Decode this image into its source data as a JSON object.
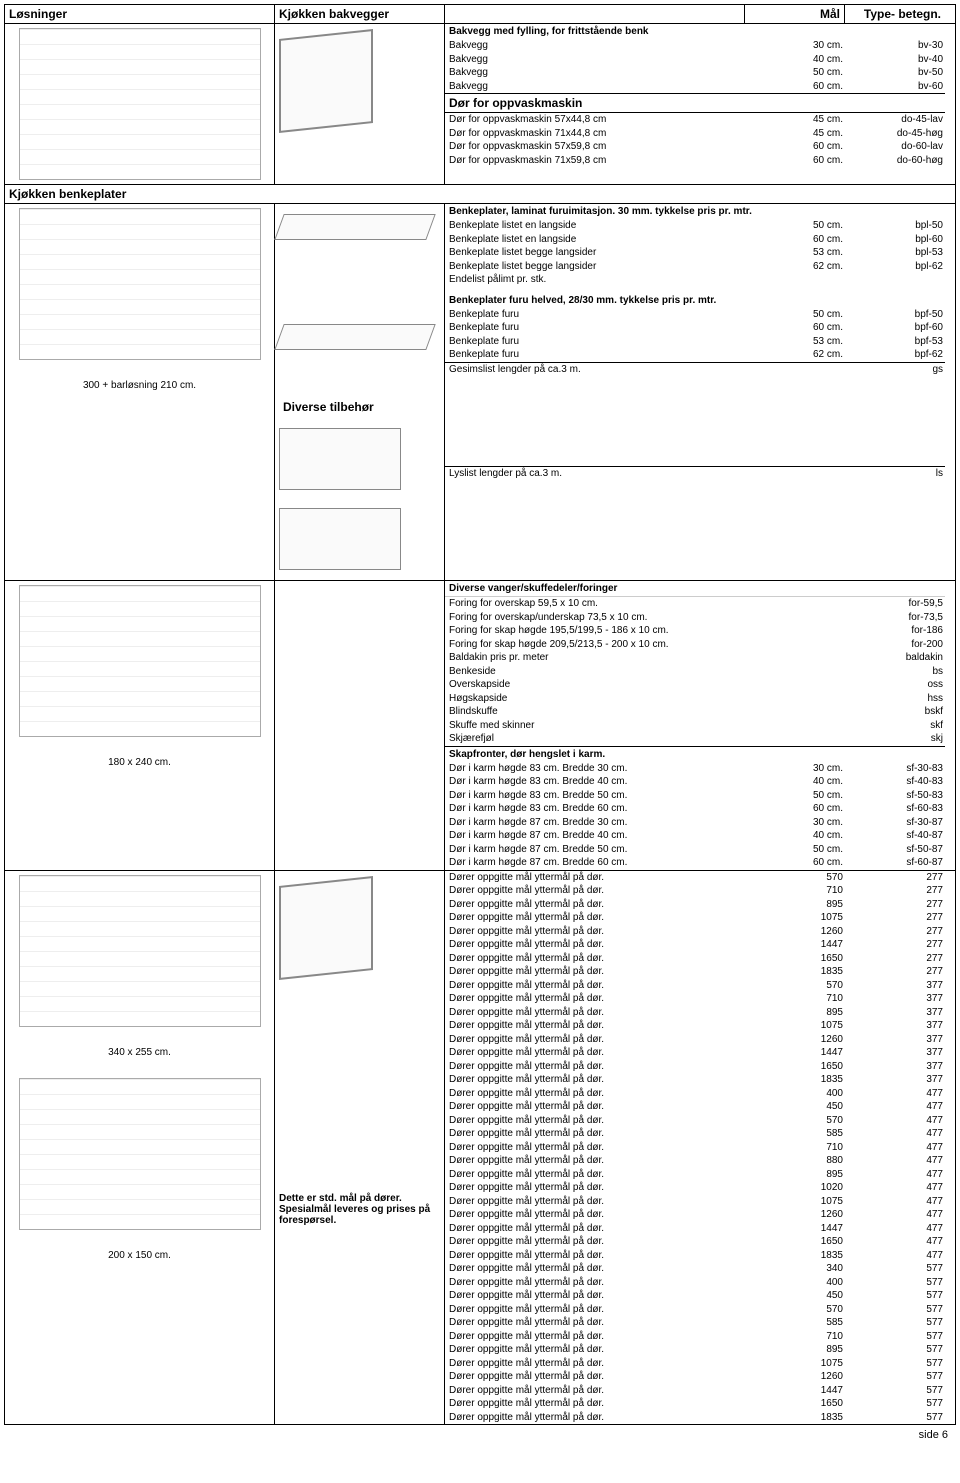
{
  "header": {
    "losninger": "Løsninger",
    "kjokken_bakvegger": "Kjøkken bakvegger",
    "mal": "Mål",
    "typebetegn": "Type-\nbetegn."
  },
  "section_bakvegg": {
    "title": "Bakvegg med fylling, for frittstående benk",
    "rows": [
      {
        "desc": "Bakvegg",
        "mal": "30 cm.",
        "type": "bv-30"
      },
      {
        "desc": "Bakvegg",
        "mal": "40 cm.",
        "type": "bv-40"
      },
      {
        "desc": "Bakvegg",
        "mal": "50 cm.",
        "type": "bv-50"
      },
      {
        "desc": "Bakvegg",
        "mal": "60 cm.",
        "type": "bv-60"
      }
    ]
  },
  "section_oppvask": {
    "title": "Dør for oppvaskmaskin",
    "rows": [
      {
        "desc": "Dør for oppvaskmaskin 57x44,8 cm",
        "mal": "45 cm.",
        "type": "do-45-lav"
      },
      {
        "desc": "Dør for oppvaskmaskin 71x44,8 cm",
        "mal": "45 cm.",
        "type": "do-45-høg"
      },
      {
        "desc": "Dør for oppvaskmaskin 57x59,8 cm",
        "mal": "60 cm.",
        "type": "do-60-lav"
      },
      {
        "desc": "Dør for oppvaskmaskin 71x59,8 cm",
        "mal": "60 cm.",
        "type": "do-60-høg"
      }
    ]
  },
  "section_benkeplater": {
    "title": "Kjøkken benkeplater",
    "sub_title": "Benkeplater, laminat furuimitasjon. 30 mm. tykkelse pris pr. mtr.",
    "rows": [
      {
        "desc": "Benkeplate listet en langside",
        "mal": "50 cm.",
        "type": "bpl-50"
      },
      {
        "desc": "Benkeplate listet en langside",
        "mal": "60 cm.",
        "type": "bpl-60"
      },
      {
        "desc": "Benkeplate listet begge langsider",
        "mal": "53 cm.",
        "type": "bpl-53"
      },
      {
        "desc": "Benkeplate listet begge langsider",
        "mal": "62 cm.",
        "type": "bpl-62"
      },
      {
        "desc": "Endelist pålimt pr. stk.",
        "mal": "",
        "type": ""
      }
    ],
    "sub_title2": "Benkeplater furu helved, 28/30 mm. tykkelse pris pr. mtr.",
    "rows2": [
      {
        "desc": "Benkeplate furu",
        "mal": "50 cm.",
        "type": "bpf-50"
      },
      {
        "desc": "Benkeplate furu",
        "mal": "60 cm.",
        "type": "bpf-60"
      },
      {
        "desc": "Benkeplate furu",
        "mal": "53 cm.",
        "type": "bpf-53"
      },
      {
        "desc": "Benkeplate furu",
        "mal": "62 cm.",
        "type": "bpf-62"
      }
    ]
  },
  "section_tilbehør": {
    "title": "Diverse tilbehør",
    "gesims": {
      "desc": "Gesimslist lengder på ca.3 m.",
      "type": "gs"
    },
    "lyslist": {
      "desc": "Lyslist lengder på ca.3 m.",
      "type": "ls"
    }
  },
  "section_vanger": {
    "title": "Diverse vanger/skuffedeler/foringer",
    "rows": [
      {
        "desc": "Foring for overskap 59,5 x 10 cm.",
        "type": "for-59,5"
      },
      {
        "desc": "Foring for overskap/underskap 73,5 x 10 cm.",
        "type": "for-73,5"
      },
      {
        "desc": "Foring for skap høgde 195,5/199,5 - 186 x 10 cm.",
        "type": "for-186"
      },
      {
        "desc": "Foring for skap høgde 209,5/213,5 - 200 x 10 cm.",
        "type": "for-200"
      },
      {
        "desc": "Baldakin pris pr. meter",
        "type": "baldakin"
      },
      {
        "desc": "Benkeside",
        "type": "bs"
      },
      {
        "desc": "Overskapside",
        "type": "oss"
      },
      {
        "desc": "Høgskapside",
        "type": "hss"
      },
      {
        "desc": "Blindskuffe",
        "type": "bskf"
      },
      {
        "desc": "Skuffe med skinner",
        "type": "skf"
      },
      {
        "desc": "Skjærefjøl",
        "type": "skj"
      }
    ]
  },
  "section_skapfronter": {
    "title": "Skapfronter, dør hengslet i karm.",
    "rows": [
      {
        "desc": "Dør i karm høgde 83 cm. Bredde 30 cm.",
        "mal": "30 cm.",
        "type": "sf-30-83"
      },
      {
        "desc": "Dør i karm høgde 83 cm. Bredde 40 cm.",
        "mal": "40 cm.",
        "type": "sf-40-83"
      },
      {
        "desc": "Dør i karm høgde 83 cm. Bredde 50 cm.",
        "mal": "50 cm.",
        "type": "sf-50-83"
      },
      {
        "desc": "Dør i karm høgde 83 cm. Bredde 60 cm.",
        "mal": "60 cm.",
        "type": "sf-60-83"
      },
      {
        "desc": "Dør i karm høgde 87 cm. Bredde 30 cm.",
        "mal": "30 cm.",
        "type": "sf-30-87"
      },
      {
        "desc": "Dør i karm høgde 87 cm. Bredde 40 cm.",
        "mal": "40 cm.",
        "type": "sf-40-87"
      },
      {
        "desc": "Dør i karm høgde 87 cm. Bredde 50 cm.",
        "mal": "50 cm.",
        "type": "sf-50-87"
      },
      {
        "desc": "Dør i karm høgde 87 cm. Bredde 60 cm.",
        "mal": "60 cm.",
        "type": "sf-60-87"
      }
    ]
  },
  "section_dorer": {
    "title": "Dører oppgitte mål yttermål på dør.",
    "note": "Dette er std. mål på dører. Spesialmål leveres og prises på forespørsel.",
    "rows": [
      {
        "mal": "570",
        "type": "277"
      },
      {
        "mal": "710",
        "type": "277"
      },
      {
        "mal": "895",
        "type": "277"
      },
      {
        "mal": "1075",
        "type": "277"
      },
      {
        "mal": "1260",
        "type": "277"
      },
      {
        "mal": "1447",
        "type": "277"
      },
      {
        "mal": "1650",
        "type": "277"
      },
      {
        "mal": "1835",
        "type": "277"
      },
      {
        "mal": "570",
        "type": "377"
      },
      {
        "mal": "710",
        "type": "377"
      },
      {
        "mal": "895",
        "type": "377"
      },
      {
        "mal": "1075",
        "type": "377"
      },
      {
        "mal": "1260",
        "type": "377"
      },
      {
        "mal": "1447",
        "type": "377"
      },
      {
        "mal": "1650",
        "type": "377"
      },
      {
        "mal": "1835",
        "type": "377"
      },
      {
        "mal": "400",
        "type": "477"
      },
      {
        "mal": "450",
        "type": "477"
      },
      {
        "mal": "570",
        "type": "477"
      },
      {
        "mal": "585",
        "type": "477"
      },
      {
        "mal": "710",
        "type": "477"
      },
      {
        "mal": "880",
        "type": "477"
      },
      {
        "mal": "895",
        "type": "477"
      },
      {
        "mal": "1020",
        "type": "477"
      },
      {
        "mal": "1075",
        "type": "477"
      },
      {
        "mal": "1260",
        "type": "477"
      },
      {
        "mal": "1447",
        "type": "477"
      },
      {
        "mal": "1650",
        "type": "477"
      },
      {
        "mal": "1835",
        "type": "477"
      },
      {
        "mal": "340",
        "type": "577"
      },
      {
        "mal": "400",
        "type": "577"
      },
      {
        "mal": "450",
        "type": "577"
      },
      {
        "mal": "570",
        "type": "577"
      },
      {
        "mal": "585",
        "type": "577"
      },
      {
        "mal": "710",
        "type": "577"
      },
      {
        "mal": "895",
        "type": "577"
      },
      {
        "mal": "1075",
        "type": "577"
      },
      {
        "mal": "1260",
        "type": "577"
      },
      {
        "mal": "1447",
        "type": "577"
      },
      {
        "mal": "1650",
        "type": "577"
      },
      {
        "mal": "1835",
        "type": "577"
      }
    ]
  },
  "captions": {
    "c1": "300 + barløsning 210 cm.",
    "c2": "180 x 240 cm.",
    "c3": "340 x 255 cm.",
    "c4": "200 x 150 cm."
  },
  "footer": "side 6"
}
